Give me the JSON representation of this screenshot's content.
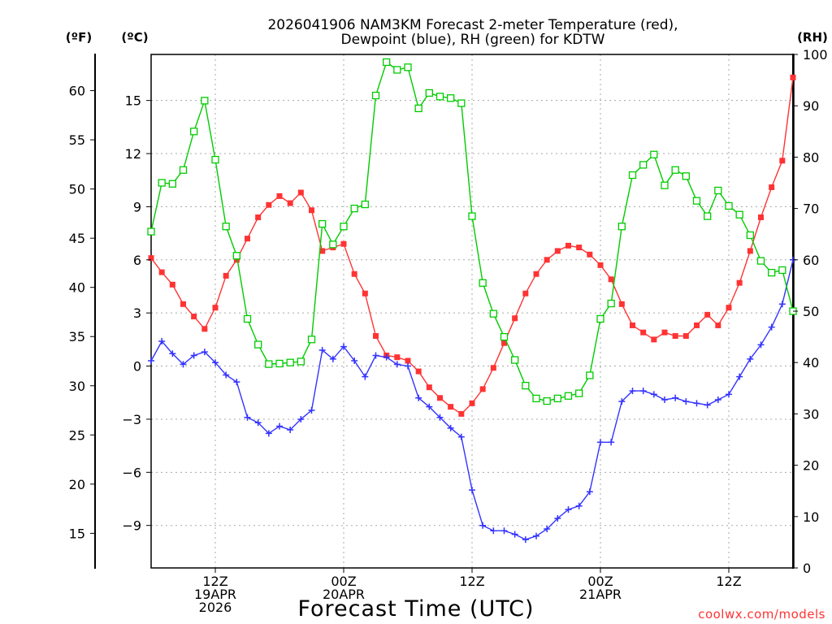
{
  "chart_data": {
    "type": "line",
    "title_line1": "2026041906 NAM3KM Forecast 2-meter Temperature (red),",
    "title_line2": "Dewpoint (blue), RH (green) for KDTW",
    "xlabel": "Forecast Time (UTC)",
    "unit_f": "(ºF)",
    "unit_c": "(ºC)",
    "unit_rh": "(RH)",
    "credit": "coolwx.com/models",
    "x_range_hours": [
      0,
      60
    ],
    "ylim_c": [
      -11.4,
      17.6
    ],
    "ylim_rh": [
      0,
      100
    ],
    "c_ticks": [
      15,
      12,
      9,
      6,
      3,
      0,
      -3,
      -6,
      -9
    ],
    "f_ticks": [
      60,
      55,
      50,
      45,
      40,
      35,
      30,
      25,
      20,
      15
    ],
    "rh_ticks": [
      100,
      90,
      80,
      70,
      60,
      50,
      40,
      30,
      20,
      10,
      0
    ],
    "x_ticks": [
      {
        "hour": 6,
        "lines": [
          "12Z",
          "19APR",
          "2026"
        ]
      },
      {
        "hour": 18,
        "lines": [
          "00Z",
          "20APR"
        ]
      },
      {
        "hour": 30,
        "lines": [
          "12Z"
        ]
      },
      {
        "hour": 42,
        "lines": [
          "00Z",
          "21APR"
        ]
      },
      {
        "hour": 54,
        "lines": [
          "12Z"
        ]
      }
    ],
    "hours": [
      0,
      1,
      2,
      3,
      4,
      5,
      6,
      7,
      8,
      9,
      10,
      11,
      12,
      13,
      14,
      15,
      16,
      17,
      18,
      19,
      20,
      21,
      22,
      23,
      24,
      25,
      26,
      27,
      28,
      29,
      30,
      31,
      32,
      33,
      34,
      35,
      36,
      37,
      38,
      39,
      40,
      41,
      42,
      43,
      44,
      45,
      46,
      47,
      48,
      49,
      50,
      51,
      52,
      53,
      54,
      55,
      56,
      57,
      58,
      59,
      60
    ],
    "series": [
      {
        "name": "Temperature",
        "unit": "C",
        "color": "#ff3333",
        "values": [
          6.1,
          5.3,
          4.6,
          3.5,
          2.8,
          2.1,
          3.3,
          5.1,
          6.0,
          7.2,
          8.4,
          9.1,
          9.6,
          9.2,
          9.8,
          8.8,
          6.5,
          6.7,
          6.9,
          5.2,
          4.1,
          1.7,
          0.6,
          0.5,
          0.3,
          -0.3,
          -1.2,
          -1.8,
          -2.3,
          -2.7,
          -2.1,
          -1.3,
          -0.1,
          1.3,
          2.7,
          4.1,
          5.2,
          6.0,
          6.5,
          6.8,
          6.7,
          6.3,
          5.7,
          4.9,
          3.5,
          2.3,
          1.9,
          1.5,
          1.9,
          1.7,
          1.7,
          2.3,
          2.9,
          2.3,
          3.3,
          4.7,
          6.5,
          8.4,
          10.1,
          11.6,
          16.3
        ]
      },
      {
        "name": "Dewpoint",
        "unit": "C",
        "color": "#3333ff",
        "values": [
          0.3,
          1.4,
          0.7,
          0.1,
          0.6,
          0.8,
          0.2,
          -0.5,
          -0.9,
          -2.9,
          -3.2,
          -3.8,
          -3.4,
          -3.6,
          -3.0,
          -2.5,
          0.9,
          0.4,
          1.1,
          0.3,
          -0.6,
          0.6,
          0.5,
          0.1,
          0.0,
          -1.8,
          -2.3,
          -2.9,
          -3.5,
          -4.0,
          -7.0,
          -9.0,
          -9.3,
          -9.3,
          -9.5,
          -9.8,
          -9.6,
          -9.2,
          -8.6,
          -8.1,
          -7.9,
          -7.1,
          -4.3,
          -4.3,
          -2.0,
          -1.4,
          -1.4,
          -1.6,
          -1.9,
          -1.8,
          -2.0,
          -2.1,
          -2.2,
          -1.9,
          -1.6,
          -0.6,
          0.4,
          1.2,
          2.2,
          3.5,
          6.0
        ]
      },
      {
        "name": "RH",
        "unit": "%",
        "color": "#00cc00",
        "values": [
          65.5,
          75.0,
          74.8,
          77.5,
          85.0,
          91.0,
          79.5,
          66.5,
          60.8,
          48.5,
          43.5,
          39.7,
          39.8,
          40.0,
          40.2,
          44.5,
          67.0,
          63.0,
          66.5,
          70.0,
          70.8,
          92.0,
          98.5,
          97.0,
          97.5,
          89.5,
          92.5,
          91.8,
          91.5,
          90.5,
          68.5,
          55.5,
          49.5,
          45.0,
          40.5,
          35.5,
          33.0,
          32.5,
          33.0,
          33.5,
          34.0,
          37.5,
          48.5,
          51.5,
          66.5,
          76.5,
          78.5,
          80.5,
          74.5,
          77.5,
          76.3,
          71.5,
          68.5,
          73.5,
          70.5,
          68.8,
          64.8,
          59.8,
          57.5,
          58.0,
          50.0
        ]
      }
    ]
  }
}
